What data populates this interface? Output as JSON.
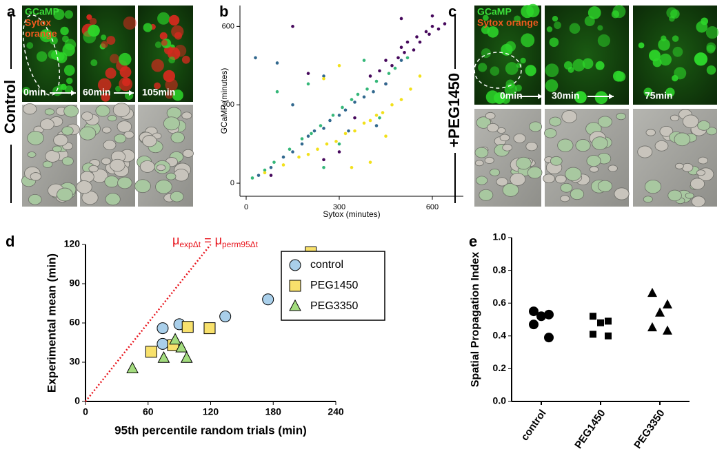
{
  "figure_labels": [
    "a",
    "b",
    "c",
    "d",
    "e"
  ],
  "panel_a": {
    "channels": [
      "GCaMP",
      "Sytox",
      "orange"
    ],
    "times": [
      "0min",
      "60min",
      "105min"
    ],
    "condition": "Control"
  },
  "panel_c": {
    "channels": [
      "GCaMP",
      "Sytox orange"
    ],
    "times": [
      "0min",
      "30min",
      "75min"
    ],
    "condition": "+PEG1450"
  },
  "chart_data": [
    {
      "type": "scatter",
      "x_label": "Sytox (minutes)",
      "y_label": "GCaMP (minutes)",
      "xlim": [
        -20,
        700
      ],
      "ylim": [
        -50,
        680
      ],
      "xticks": [
        0,
        300,
        600
      ],
      "yticks": [
        0,
        300,
        600
      ],
      "series": [
        {
          "color": "#46085c",
          "marker": "circle",
          "x": [
            400,
            430,
            450,
            470,
            490,
            500,
            510,
            520,
            540,
            550,
            560,
            580,
            590,
            600,
            620,
            640,
            500,
            300,
            200,
            150,
            350,
            80,
            450,
            600,
            250
          ],
          "values": [
            410,
            430,
            470,
            450,
            480,
            520,
            500,
            540,
            510,
            560,
            540,
            580,
            570,
            600,
            590,
            610,
            630,
            120,
            420,
            600,
            250,
            30,
            380,
            640,
            90
          ]
        },
        {
          "color": "#31688e",
          "marker": "circle",
          "x": [
            40,
            80,
            120,
            150,
            180,
            200,
            220,
            250,
            270,
            300,
            320,
            350,
            380,
            410,
            450,
            30,
            100,
            250,
            330,
            150,
            500,
            420
          ],
          "values": [
            30,
            60,
            100,
            120,
            150,
            180,
            200,
            210,
            240,
            260,
            280,
            310,
            330,
            350,
            380,
            480,
            460,
            410,
            200,
            300,
            470,
            220
          ]
        },
        {
          "color": "#35b779",
          "marker": "circle",
          "x": [
            20,
            60,
            90,
            140,
            180,
            210,
            240,
            280,
            310,
            340,
            360,
            390,
            420,
            460,
            480,
            520,
            100,
            200,
            300,
            430,
            250,
            380
          ],
          "values": [
            20,
            50,
            80,
            130,
            170,
            190,
            220,
            260,
            290,
            320,
            340,
            360,
            390,
            420,
            440,
            480,
            350,
            380,
            150,
            250,
            60,
            470
          ]
        },
        {
          "color": "#f2e01b",
          "marker": "circle",
          "x": [
            60,
            120,
            170,
            200,
            230,
            260,
            290,
            320,
            350,
            380,
            400,
            420,
            440,
            470,
            500,
            530,
            560,
            300,
            450,
            250,
            340,
            400
          ],
          "values": [
            40,
            70,
            100,
            110,
            130,
            150,
            160,
            190,
            200,
            230,
            240,
            260,
            270,
            300,
            320,
            360,
            410,
            450,
            180,
            400,
            60,
            80
          ]
        }
      ]
    },
    {
      "type": "scatter",
      "x_label": "95th percentile random trials (min)",
      "y_label": "Experimental mean (min)",
      "annotation": [
        "μ",
        "expΔt",
        " = μ",
        "perm95Δt"
      ],
      "reference_line": {
        "x": [
          0,
          120
        ],
        "y": [
          0,
          120
        ],
        "color": "#e8141c"
      },
      "xlim": [
        0,
        240
      ],
      "ylim": [
        0,
        120
      ],
      "xticks": [
        0,
        60,
        120,
        180,
        240
      ],
      "yticks": [
        0,
        30,
        60,
        90,
        120
      ],
      "legend": "upper-right",
      "series": [
        {
          "name": "control",
          "color": "#a9cfea",
          "marker": "circle",
          "x": [
            74,
            90,
            134,
            175,
            74
          ],
          "values": [
            56,
            59,
            65,
            78,
            44
          ]
        },
        {
          "name": "PEG1450",
          "color": "#f8e16c",
          "marker": "square",
          "x": [
            63,
            84,
            98,
            119,
            216
          ],
          "values": [
            38,
            43,
            57,
            56,
            114
          ]
        },
        {
          "name": "PEG3350",
          "color": "#a3dc7e",
          "marker": "triangle",
          "x": [
            45,
            75,
            86,
            92,
            97
          ],
          "values": [
            25,
            33,
            47,
            41,
            33
          ]
        }
      ]
    },
    {
      "type": "dot",
      "y_label": "Spatial Propagation Index",
      "categories": [
        "control",
        "PEG1450",
        "PEG3350"
      ],
      "markers": [
        "circle",
        "square",
        "triangle"
      ],
      "color": "#000000",
      "values": [
        [
          0.55,
          0.53,
          0.52,
          0.47,
          0.39
        ],
        [
          0.52,
          0.49,
          0.48,
          0.41,
          0.4
        ],
        [
          0.66,
          0.59,
          0.54,
          0.45,
          0.43
        ]
      ],
      "ylim": [
        0,
        1
      ],
      "yticks": [
        {
          "value": 0,
          "label": "0.0"
        },
        {
          "value": 0.2,
          "label": "0.2"
        },
        {
          "value": 0.4,
          "label": "0.4"
        },
        {
          "value": 0.6,
          "label": "0.6"
        },
        {
          "value": 0.8,
          "label": "0.8"
        },
        {
          "value": 1,
          "label": "1.0"
        }
      ]
    }
  ]
}
